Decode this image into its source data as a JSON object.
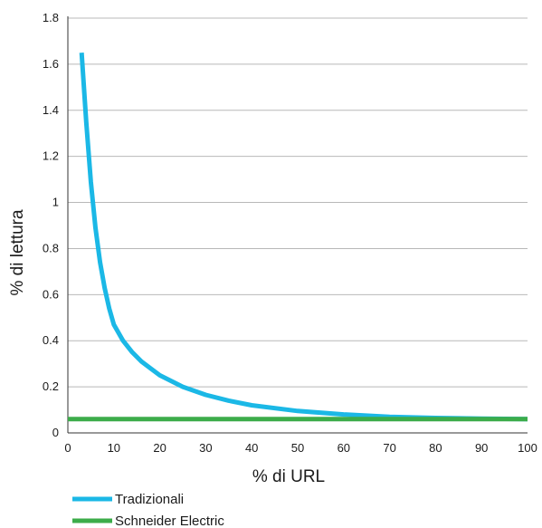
{
  "chart_data": {
    "type": "line",
    "xlabel": "% di URL",
    "ylabel": "% di lettura",
    "xlim": [
      0,
      100
    ],
    "ylim": [
      0,
      1.8
    ],
    "xticks": [
      0,
      10,
      20,
      30,
      40,
      50,
      60,
      70,
      80,
      90,
      100
    ],
    "yticks": [
      0,
      0.2,
      0.4,
      0.6,
      0.8,
      1,
      1.2,
      1.4,
      1.6,
      1.8
    ],
    "ytick_labels": [
      "0",
      "0.2",
      "0.4",
      "0.6",
      "0.8",
      "1",
      "1.2",
      "1.4",
      "1.6",
      "1.8"
    ],
    "grid": "horizontal",
    "legend_position": "bottom-left",
    "series": [
      {
        "name": "Tradizionali",
        "color": "#1bb8e6",
        "x": [
          3,
          4,
          5,
          6,
          7,
          8,
          9,
          10,
          12,
          14,
          16,
          18,
          20,
          25,
          30,
          35,
          40,
          50,
          60,
          70,
          80,
          90,
          100
        ],
        "y": [
          1.65,
          1.35,
          1.09,
          0.89,
          0.74,
          0.63,
          0.54,
          0.47,
          0.4,
          0.35,
          0.31,
          0.28,
          0.25,
          0.2,
          0.165,
          0.14,
          0.12,
          0.095,
          0.08,
          0.07,
          0.065,
          0.062,
          0.06
        ]
      },
      {
        "name": "Schneider Electric",
        "color": "#3cac4a",
        "x": [
          0,
          100
        ],
        "y": [
          0.06,
          0.06
        ]
      }
    ]
  }
}
